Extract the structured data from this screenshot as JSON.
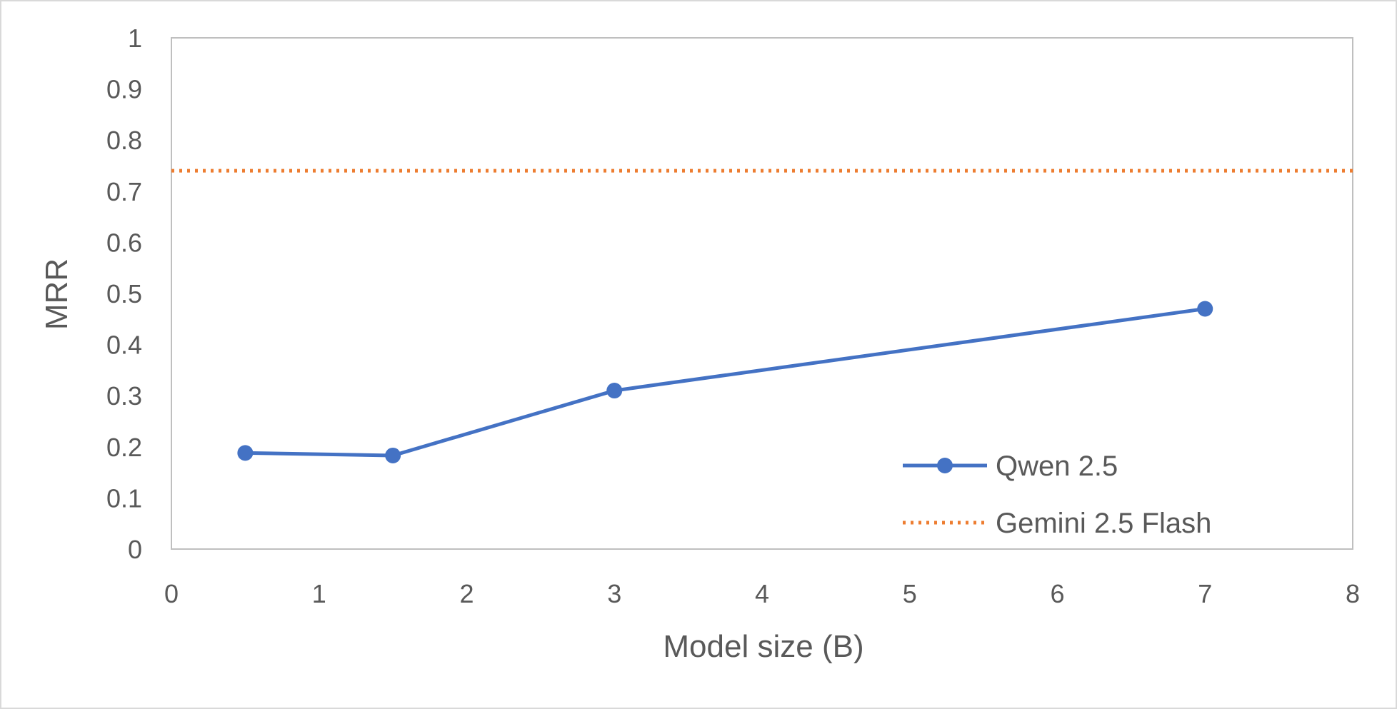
{
  "chart_data": {
    "type": "line",
    "title": "",
    "xlabel": "Model size (B)",
    "ylabel": "MRR",
    "xlim": [
      0,
      8
    ],
    "ylim": [
      0,
      1
    ],
    "x_ticks": [
      0,
      1,
      2,
      3,
      4,
      5,
      6,
      7,
      8
    ],
    "y_ticks": [
      0,
      0.1,
      0.2,
      0.3,
      0.4,
      0.5,
      0.6,
      0.7,
      0.8,
      0.9,
      1
    ],
    "x_tick_labels": [
      "0",
      "1",
      "2",
      "3",
      "4",
      "5",
      "6",
      "7",
      "8"
    ],
    "y_tick_labels": [
      "0",
      "0.1",
      "0.2",
      "0.3",
      "0.4",
      "0.5",
      "0.6",
      "0.7",
      "0.8",
      "0.9",
      "1"
    ],
    "grid": false,
    "legend_position": "bottom-right inside plot",
    "series": [
      {
        "name": "Qwen 2.5",
        "style": "solid line with circle markers",
        "color": "#4472C4",
        "x": [
          0.5,
          1.5,
          3,
          7
        ],
        "y": [
          0.188,
          0.183,
          0.31,
          0.47
        ]
      },
      {
        "name": "Gemini 2.5 Flash",
        "style": "dotted horizontal reference line",
        "color": "#ED7D31",
        "x": [
          0,
          8
        ],
        "y": [
          0.74,
          0.74
        ]
      }
    ]
  }
}
